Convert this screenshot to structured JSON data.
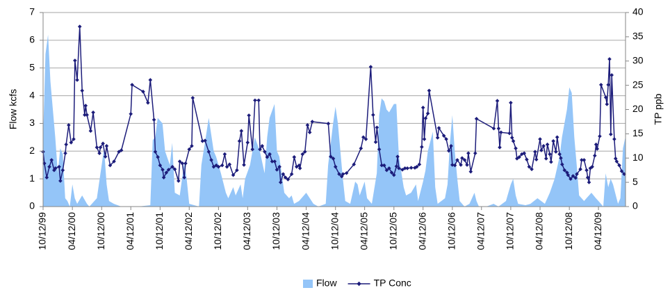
{
  "chart_data": {
    "type": "combo",
    "ylabel": "Flow kcfs",
    "y2label": "TP ppb",
    "ylim": [
      0,
      7
    ],
    "yticks": [
      0,
      1,
      2,
      3,
      4,
      5,
      6,
      7
    ],
    "y2lim": [
      0,
      40
    ],
    "y2ticks": [
      0,
      5,
      10,
      15,
      20,
      25,
      30,
      35,
      40
    ],
    "xlim": [
      "10/12/99",
      "09/28/09"
    ],
    "xticks": [
      "10/12/99",
      "04/12/00",
      "10/12/00",
      "04/12/01",
      "10/12/01",
      "04/12/02",
      "10/12/02",
      "04/12/03",
      "10/12/03",
      "04/12/04",
      "10/12/04",
      "04/12/05",
      "10/12/05",
      "04/12/06",
      "10/12/06",
      "04/12/07",
      "10/12/07",
      "04/12/08",
      "10/12/08",
      "04/12/09"
    ],
    "grid": true,
    "legend": "bottom",
    "series": [
      {
        "name": "Flow",
        "type": "area",
        "color": "#94c5f8",
        "x": [
          "10/12/99",
          "10/27/99",
          "11/12/99",
          "11/27/99",
          "12/27/99",
          "01/12/00",
          "01/27/00",
          "02/12/00",
          "02/27/00",
          "03/12/00",
          "03/27/00",
          "04/12/00",
          "04/27/00",
          "05/12/00",
          "06/12/00",
          "07/12/00",
          "07/27/00",
          "09/12/00",
          "10/12/00",
          "10/27/00",
          "11/12/00",
          "11/27/00",
          "12/27/00",
          "02/12/01",
          "05/27/01",
          "08/12/01",
          "08/27/01",
          "09/12/01",
          "09/27/01",
          "10/27/01",
          "11/12/01",
          "12/12/01",
          "12/27/01",
          "01/12/02",
          "02/12/02",
          "03/12/02",
          "03/27/02",
          "04/12/02",
          "06/12/02",
          "06/27/02",
          "07/27/02",
          "08/12/02",
          "09/12/02",
          "09/27/02",
          "10/27/02",
          "11/27/02",
          "12/12/02",
          "01/12/03",
          "01/27/03",
          "02/27/03",
          "03/12/03",
          "03/27/03",
          "04/27/03",
          "05/27/03",
          "06/27/03",
          "07/27/03",
          "08/12/03",
          "08/27/03",
          "09/27/03",
          "10/12/03",
          "10/27/03",
          "11/27/03",
          "12/27/03",
          "01/12/04",
          "01/27/04",
          "02/27/04",
          "04/12/04",
          "05/27/04",
          "06/27/04",
          "08/12/04",
          "08/27/04",
          "09/27/04",
          "10/12/04",
          "10/27/04",
          "11/27/04",
          "12/12/04",
          "01/12/05",
          "02/12/05",
          "02/27/05",
          "03/12/05",
          "04/12/05",
          "04/27/05",
          "05/27/05",
          "06/27/05",
          "07/12/05",
          "07/27/05",
          "08/12/05",
          "08/27/05",
          "09/12/05",
          "10/12/05",
          "10/27/05",
          "11/12/05",
          "12/12/05",
          "12/27/05",
          "01/27/06",
          "02/27/06",
          "03/12/06",
          "04/12/06",
          "04/27/06",
          "05/12/06",
          "06/12/06",
          "06/27/06",
          "07/12/06",
          "08/27/06",
          "09/12/06",
          "09/27/06",
          "10/12/06",
          "10/27/06",
          "11/12/06",
          "11/27/06",
          "12/27/06",
          "01/27/07",
          "02/27/07",
          "03/12/07",
          "03/27/07",
          "05/12/07",
          "06/27/07",
          "07/27/07",
          "09/12/07",
          "10/12/07",
          "10/27/07",
          "11/12/07",
          "11/27/07",
          "01/12/08",
          "02/12/08",
          "03/27/08",
          "05/12/08",
          "06/12/08",
          "07/12/08",
          "08/12/08",
          "08/27/08",
          "09/27/08",
          "10/12/08",
          "10/27/08",
          "11/12/08",
          "11/27/08",
          "12/12/08",
          "01/12/09",
          "01/27/09",
          "02/27/09",
          "03/27/09",
          "04/12/09",
          "04/27/09",
          "05/12/09",
          "05/27/09",
          "06/12/09",
          "06/27/09",
          "07/12/09",
          "08/12/09",
          "08/27/09",
          "09/12/09",
          "09/27/09"
        ],
        "values": [
          2.5,
          5.5,
          6.2,
          4.5,
          2.5,
          1.2,
          2.1,
          1.9,
          0.3,
          0.2,
          0,
          0.8,
          0.3,
          0.1,
          0.4,
          0.1,
          0,
          0.3,
          1.5,
          2.1,
          0.8,
          0.2,
          0.1,
          0,
          0,
          0.05,
          2.4,
          2.5,
          3.2,
          3.0,
          2.0,
          1.5,
          2.3,
          0.5,
          0.4,
          1.6,
          1.0,
          0.1,
          0,
          1.5,
          2.6,
          3.2,
          2.0,
          1.8,
          1.2,
          0.5,
          0.3,
          0.7,
          0.4,
          0.8,
          0.3,
          1.0,
          1.5,
          2.5,
          2.0,
          1.2,
          2.5,
          3.2,
          3.7,
          2.0,
          1.8,
          0.5,
          0.3,
          0.4,
          0.1,
          0.2,
          0.5,
          0.1,
          0,
          0.1,
          1.5,
          3.0,
          3.6,
          3.0,
          1.0,
          0.2,
          0.1,
          0.9,
          0.8,
          0.4,
          0.9,
          0.3,
          0.1,
          1.2,
          3.3,
          3.9,
          3.8,
          3.5,
          3.4,
          3.7,
          3.7,
          1.8,
          0.7,
          0.4,
          0.5,
          0.8,
          0.2,
          0.9,
          1.3,
          2.0,
          2.7,
          0.7,
          0.1,
          0.3,
          0.8,
          2.3,
          3.3,
          2.0,
          1.0,
          0.2,
          0,
          0.1,
          0.5,
          0.2,
          0,
          0,
          0.1,
          0,
          0.2,
          0.8,
          1.0,
          0.4,
          0.1,
          0.05,
          0.1,
          0.3,
          0.1,
          0.5,
          1.0,
          1.8,
          2.5,
          3.5,
          4.3,
          4.1,
          2.5,
          1.5,
          0.4,
          0.2,
          0.3,
          0.5,
          0.3,
          0.2,
          0.1,
          0,
          1.2,
          0.7,
          1.0,
          0.8,
          0.1,
          0.3,
          2.1,
          2.5
        ]
      },
      {
        "name": "TP Conc",
        "type": "line",
        "axis": "y2",
        "color": "#1c1c7a",
        "marker": "diamond",
        "x": [
          "10/12/99",
          "10/20/99",
          "11/04/99",
          "11/20/99",
          "12/04/99",
          "12/20/99",
          "12/28/99",
          "01/20/00",
          "01/28/00",
          "02/12/00",
          "02/28/00",
          "03/04/00",
          "03/20/00",
          "04/04/00",
          "04/20/00",
          "04/28/00",
          "05/12/00",
          "05/28/00",
          "06/12/00",
          "06/28/00",
          "07/04/00",
          "07/12/00",
          "08/04/00",
          "08/20/00",
          "09/12/00",
          "09/28/00",
          "10/04/00",
          "10/20/00",
          "11/04/00",
          "11/12/00",
          "12/04/00",
          "12/28/00",
          "01/28/01",
          "02/12/01",
          "04/12/01",
          "04/20/01",
          "06/28/01",
          "07/28/01",
          "08/12/01",
          "09/04/01",
          "09/12/01",
          "09/28/01",
          "10/12/01",
          "10/28/01",
          "11/04/01",
          "11/20/01",
          "12/04/01",
          "12/28/01",
          "01/12/02",
          "02/04/02",
          "02/12/02",
          "02/28/02",
          "03/12/02",
          "03/20/02",
          "04/12/02",
          "04/28/02",
          "05/04/02",
          "07/04/02",
          "07/20/02",
          "08/12/02",
          "08/28/02",
          "09/12/02",
          "09/28/02",
          "10/12/02",
          "11/04/02",
          "11/20/02",
          "12/04/02",
          "12/20/02",
          "01/12/03",
          "02/04/03",
          "02/20/03",
          "03/04/03",
          "03/20/03",
          "04/12/03",
          "04/20/03",
          "05/12/03",
          "05/28/03",
          "06/20/03",
          "06/28/03",
          "07/12/03",
          "07/28/03",
          "08/12/03",
          "08/28/03",
          "09/12/03",
          "09/28/03",
          "10/12/03",
          "10/28/03",
          "11/04/03",
          "11/20/03",
          "12/04/03",
          "12/20/03",
          "01/12/04",
          "01/28/04",
          "02/12/04",
          "02/28/04",
          "03/04/04",
          "03/20/04",
          "04/04/04",
          "04/20/04",
          "05/04/04",
          "05/20/04",
          "08/28/04",
          "09/12/04",
          "09/28/04",
          "10/12/04",
          "11/04/04",
          "11/20/04",
          "11/28/04",
          "12/20/04",
          "02/04/05",
          "03/20/05",
          "04/04/05",
          "04/20/05",
          "05/20/05",
          "06/04/05",
          "06/20/05",
          "06/28/05",
          "07/12/05",
          "07/28/05",
          "08/12/05",
          "08/28/05",
          "09/12/05",
          "09/28/05",
          "10/12/05",
          "10/28/05",
          "11/04/05",
          "11/12/05",
          "12/04/05",
          "12/20/05",
          "01/04/06",
          "01/28/06",
          "02/20/06",
          "03/04/06",
          "03/20/06",
          "04/04/06",
          "04/12/06",
          "04/20/06",
          "04/28/06",
          "05/12/06",
          "05/20/06",
          "07/12/06",
          "07/20/06",
          "08/20/06",
          "09/04/06",
          "09/20/06",
          "10/04/06",
          "10/12/06",
          "10/28/06",
          "11/12/06",
          "12/04/06",
          "12/12/06",
          "12/28/06",
          "01/12/07",
          "01/20/07",
          "02/04/07",
          "03/04/07",
          "03/12/07",
          "06/28/07",
          "07/20/07",
          "07/28/07",
          "08/04/07",
          "08/12/07",
          "10/04/07",
          "10/12/07",
          "10/20/07",
          "10/28/07",
          "11/12/07",
          "11/20/07",
          "12/04/07",
          "12/20/07",
          "01/04/08",
          "01/20/08",
          "02/04/08",
          "02/20/08",
          "03/12/08",
          "03/20/08",
          "04/12/08",
          "04/20/08",
          "05/04/08",
          "05/20/08",
          "05/28/08",
          "06/12/08",
          "06/20/08",
          "07/04/08",
          "07/20/08",
          "07/28/08",
          "08/12/08",
          "08/20/08",
          "08/28/08",
          "09/12/08",
          "09/28/08",
          "10/04/08",
          "10/20/08",
          "11/04/08",
          "11/20/08",
          "11/28/08",
          "12/20/08",
          "12/28/08",
          "01/12/09",
          "01/28/09",
          "02/04/09",
          "02/12/09",
          "02/20/09",
          "03/04/09",
          "03/20/09",
          "03/28/09",
          "04/04/09",
          "04/20/09",
          "04/28/09",
          "05/28/09",
          "06/04/09",
          "06/12/09",
          "06/20/09",
          "06/28/09",
          "07/04/09",
          "07/20/09",
          "07/28/09",
          "08/04/09",
          "08/20/09",
          "09/04/09",
          "09/20/09"
        ],
        "values": [
          11.3,
          8.9,
          6.0,
          8.2,
          9.6,
          7.5,
          7.9,
          8.2,
          5.3,
          7.5,
          11.0,
          12.8,
          16.8,
          13.2,
          13.9,
          30.1,
          26.1,
          37.1,
          23.9,
          18.9,
          20.8,
          18.9,
          15.6,
          19.4,
          12.2,
          11.0,
          12.2,
          13.0,
          10.3,
          12.5,
          8.5,
          9.3,
          11.3,
          11.6,
          19.1,
          25.1,
          23.7,
          21.4,
          26.1,
          17.9,
          11.3,
          10.2,
          8.5,
          7.6,
          6.0,
          7.0,
          7.6,
          8.2,
          7.7,
          5.3,
          9.3,
          8.9,
          6.0,
          8.9,
          11.8,
          12.5,
          22.4,
          13.5,
          13.6,
          11.3,
          9.6,
          8.2,
          8.5,
          8.2,
          8.5,
          10.8,
          8.2,
          8.7,
          6.5,
          7.5,
          13.5,
          15.6,
          8.6,
          13.2,
          18.8,
          11.8,
          21.9,
          21.9,
          11.8,
          12.5,
          11.3,
          10.2,
          10.8,
          9.3,
          9.3,
          7.6,
          8.2,
          5.0,
          6.7,
          6.0,
          5.6,
          6.7,
          10.2,
          8.2,
          8.5,
          7.9,
          10.8,
          11.3,
          16.8,
          15.3,
          17.5,
          17.1,
          10.3,
          9.9,
          8.2,
          6.7,
          6.2,
          6.7,
          6.9,
          8.7,
          12.0,
          14.3,
          13.9,
          28.8,
          18.9,
          13.3,
          16.3,
          11.8,
          8.5,
          8.5,
          7.5,
          7.9,
          7.0,
          6.5,
          8.3,
          10.3,
          7.9,
          7.6,
          7.9,
          7.9,
          8.0,
          8.0,
          8.2,
          8.7,
          12.3,
          20.4,
          13.9,
          18.2,
          19.2,
          23.9,
          14.2,
          16.2,
          14.6,
          13.9,
          11.5,
          12.5,
          8.6,
          8.5,
          9.6,
          8.6,
          10.0,
          9.6,
          8.6,
          11.0,
          7.2,
          11.0,
          18.1,
          16.1,
          21.8,
          16.1,
          12.2,
          15.3,
          15.1,
          21.4,
          14.2,
          13.5,
          12.0,
          9.9,
          10.2,
          10.8,
          11.0,
          9.7,
          8.2,
          7.7,
          11.3,
          9.7,
          13.9,
          11.6,
          12.5,
          9.9,
          12.8,
          10.8,
          9.2,
          13.5,
          11.3,
          14.3,
          10.8,
          10.0,
          8.7,
          7.5,
          7.0,
          6.5,
          5.7,
          6.3,
          5.9,
          6.7,
          7.7,
          9.6,
          9.6,
          7.5,
          6.0,
          5.0,
          7.9,
          8.2,
          10.5,
          12.8,
          11.9,
          14.5,
          25.1,
          22.5,
          21.1,
          25.1,
          30.4,
          14.9,
          27.1,
          13.9,
          9.9,
          9.3,
          8.5,
          7.3,
          6.7
        ]
      }
    ]
  }
}
